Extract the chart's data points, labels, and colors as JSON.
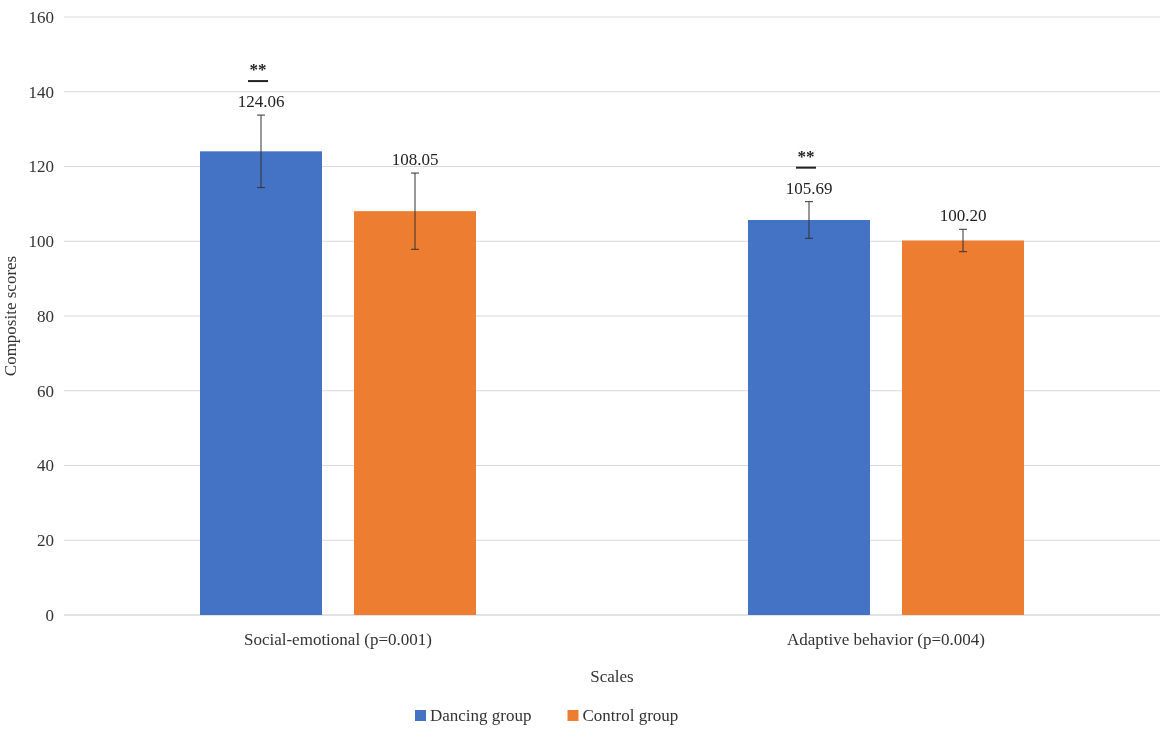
{
  "chart_data": {
    "type": "bar",
    "xlabel": "Scales",
    "ylabel": "Composite scores",
    "categories": [
      "Social-emotional (p=0.001)",
      "Adaptive behavior (p=0.004)"
    ],
    "series": [
      {
        "name": "Dancing group",
        "color": "#4472c4",
        "values": [
          124.06,
          105.69
        ],
        "errors": [
          9.7,
          4.9
        ],
        "value_labels": [
          "124.06",
          "105.69"
        ]
      },
      {
        "name": "Control group",
        "color": "#ed7d31",
        "values": [
          108.05,
          100.2
        ],
        "errors": [
          10.2,
          3
        ],
        "value_labels": [
          "108.05",
          "100.20"
        ]
      }
    ],
    "annotations": [
      "**",
      "**"
    ],
    "ylim": [
      0,
      160
    ],
    "yticks": [
      0,
      20,
      40,
      60,
      80,
      100,
      120,
      140,
      160
    ],
    "grid": "y",
    "legend": "bottom"
  }
}
